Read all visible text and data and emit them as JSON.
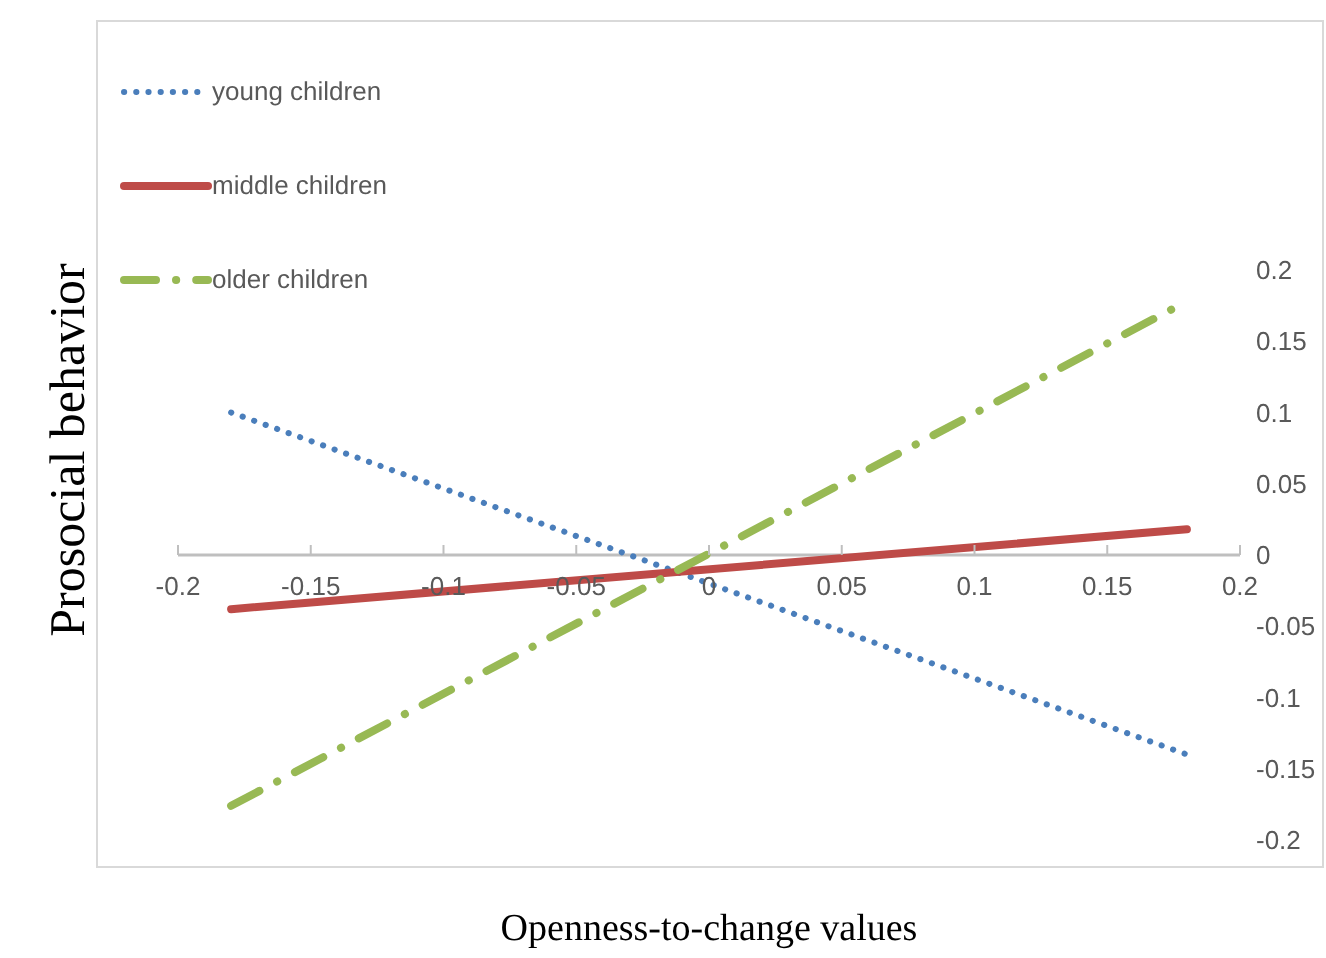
{
  "chart_data": {
    "type": "line",
    "xlabel": "Openness-to-change values",
    "ylabel": "Prosocial behavior",
    "x": [
      -0.18,
      0.18
    ],
    "series": [
      {
        "name": "young children",
        "color": "#4a7ebb",
        "line_style": "dotted",
        "values": [
          0.1,
          -0.14
        ]
      },
      {
        "name": "middle children",
        "color": "#be4b48",
        "line_style": "solid",
        "values": [
          -0.038,
          0.018
        ]
      },
      {
        "name": "older children",
        "color": "#98b954",
        "line_style": "dashed",
        "values": [
          -0.176,
          0.178
        ]
      }
    ],
    "xlim": [
      -0.2,
      0.2
    ],
    "xticks": [
      -0.2,
      -0.15,
      -0.1,
      -0.05,
      0,
      0.05,
      0.1,
      0.15,
      0.2
    ],
    "ylim": [
      -0.2,
      0.2
    ],
    "yticks": [
      -0.2,
      -0.15,
      -0.1,
      -0.05,
      0,
      0.05,
      0.1,
      0.15,
      0.2
    ],
    "legend": "top left",
    "marker": "none"
  }
}
